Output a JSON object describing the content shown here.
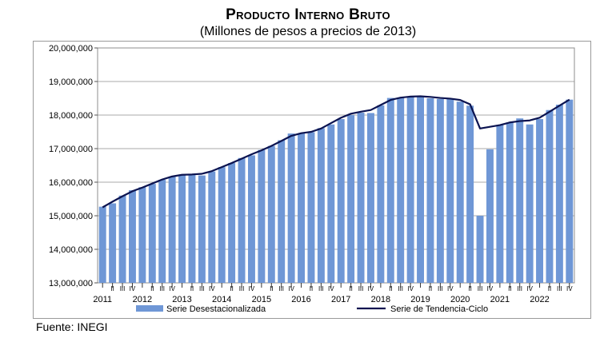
{
  "header": {
    "title": "Producto Interno Bruto",
    "subtitle": "(Millones de pesos a precios de 2013)"
  },
  "footer": {
    "source": "Fuente: INEGI"
  },
  "chart_data": {
    "type": "bar",
    "title": "Producto Interno Bruto",
    "subtitle": "(Millones de pesos a precios de 2013)",
    "ylim": [
      13000000,
      20000000
    ],
    "yticks": [
      "13,000,000",
      "14,000,000",
      "15,000,000",
      "16,000,000",
      "17,000,000",
      "18,000,000",
      "19,000,000",
      "20,000,000"
    ],
    "grid": true,
    "legend_position": "bottom",
    "quarter_labels": [
      "I",
      "II",
      "III",
      "IV"
    ],
    "years": [
      "2011",
      "2012",
      "2013",
      "2014",
      "2015",
      "2016",
      "2017",
      "2018",
      "2019",
      "2020",
      "2021",
      "2022"
    ],
    "series": [
      {
        "name": "Serie Desestacionalizada",
        "kind": "bar",
        "color": "#6f97d6",
        "values": [
          15270000,
          15370000,
          15600000,
          15760000,
          15850000,
          15950000,
          16070000,
          16170000,
          16220000,
          16230000,
          16200000,
          16320000,
          16450000,
          16570000,
          16720000,
          16800000,
          16960000,
          17080000,
          17250000,
          17450000,
          17460000,
          17490000,
          17610000,
          17720000,
          17880000,
          18000000,
          18070000,
          18060000,
          18290000,
          18510000,
          18520000,
          18550000,
          18560000,
          18500000,
          18480000,
          18480000,
          18400000,
          18280000,
          15000000,
          16980000,
          17710000,
          17780000,
          17900000,
          17720000,
          17880000,
          18150000,
          18310000,
          18460000
        ]
      },
      {
        "name": "Serie de Tendencia-Ciclo",
        "kind": "line",
        "color": "#0b1350",
        "values": [
          15250000,
          15420000,
          15580000,
          15730000,
          15840000,
          15960000,
          16080000,
          16170000,
          16220000,
          16230000,
          16250000,
          16330000,
          16450000,
          16570000,
          16700000,
          16830000,
          16950000,
          17080000,
          17230000,
          17380000,
          17460000,
          17500000,
          17600000,
          17760000,
          17920000,
          18040000,
          18100000,
          18150000,
          18300000,
          18450000,
          18520000,
          18550000,
          18560000,
          18540000,
          18510000,
          18490000,
          18450000,
          18320000,
          17600000,
          17650000,
          17700000,
          17780000,
          17820000,
          17840000,
          17920000,
          18100000,
          18280000,
          18460000
        ]
      }
    ]
  }
}
